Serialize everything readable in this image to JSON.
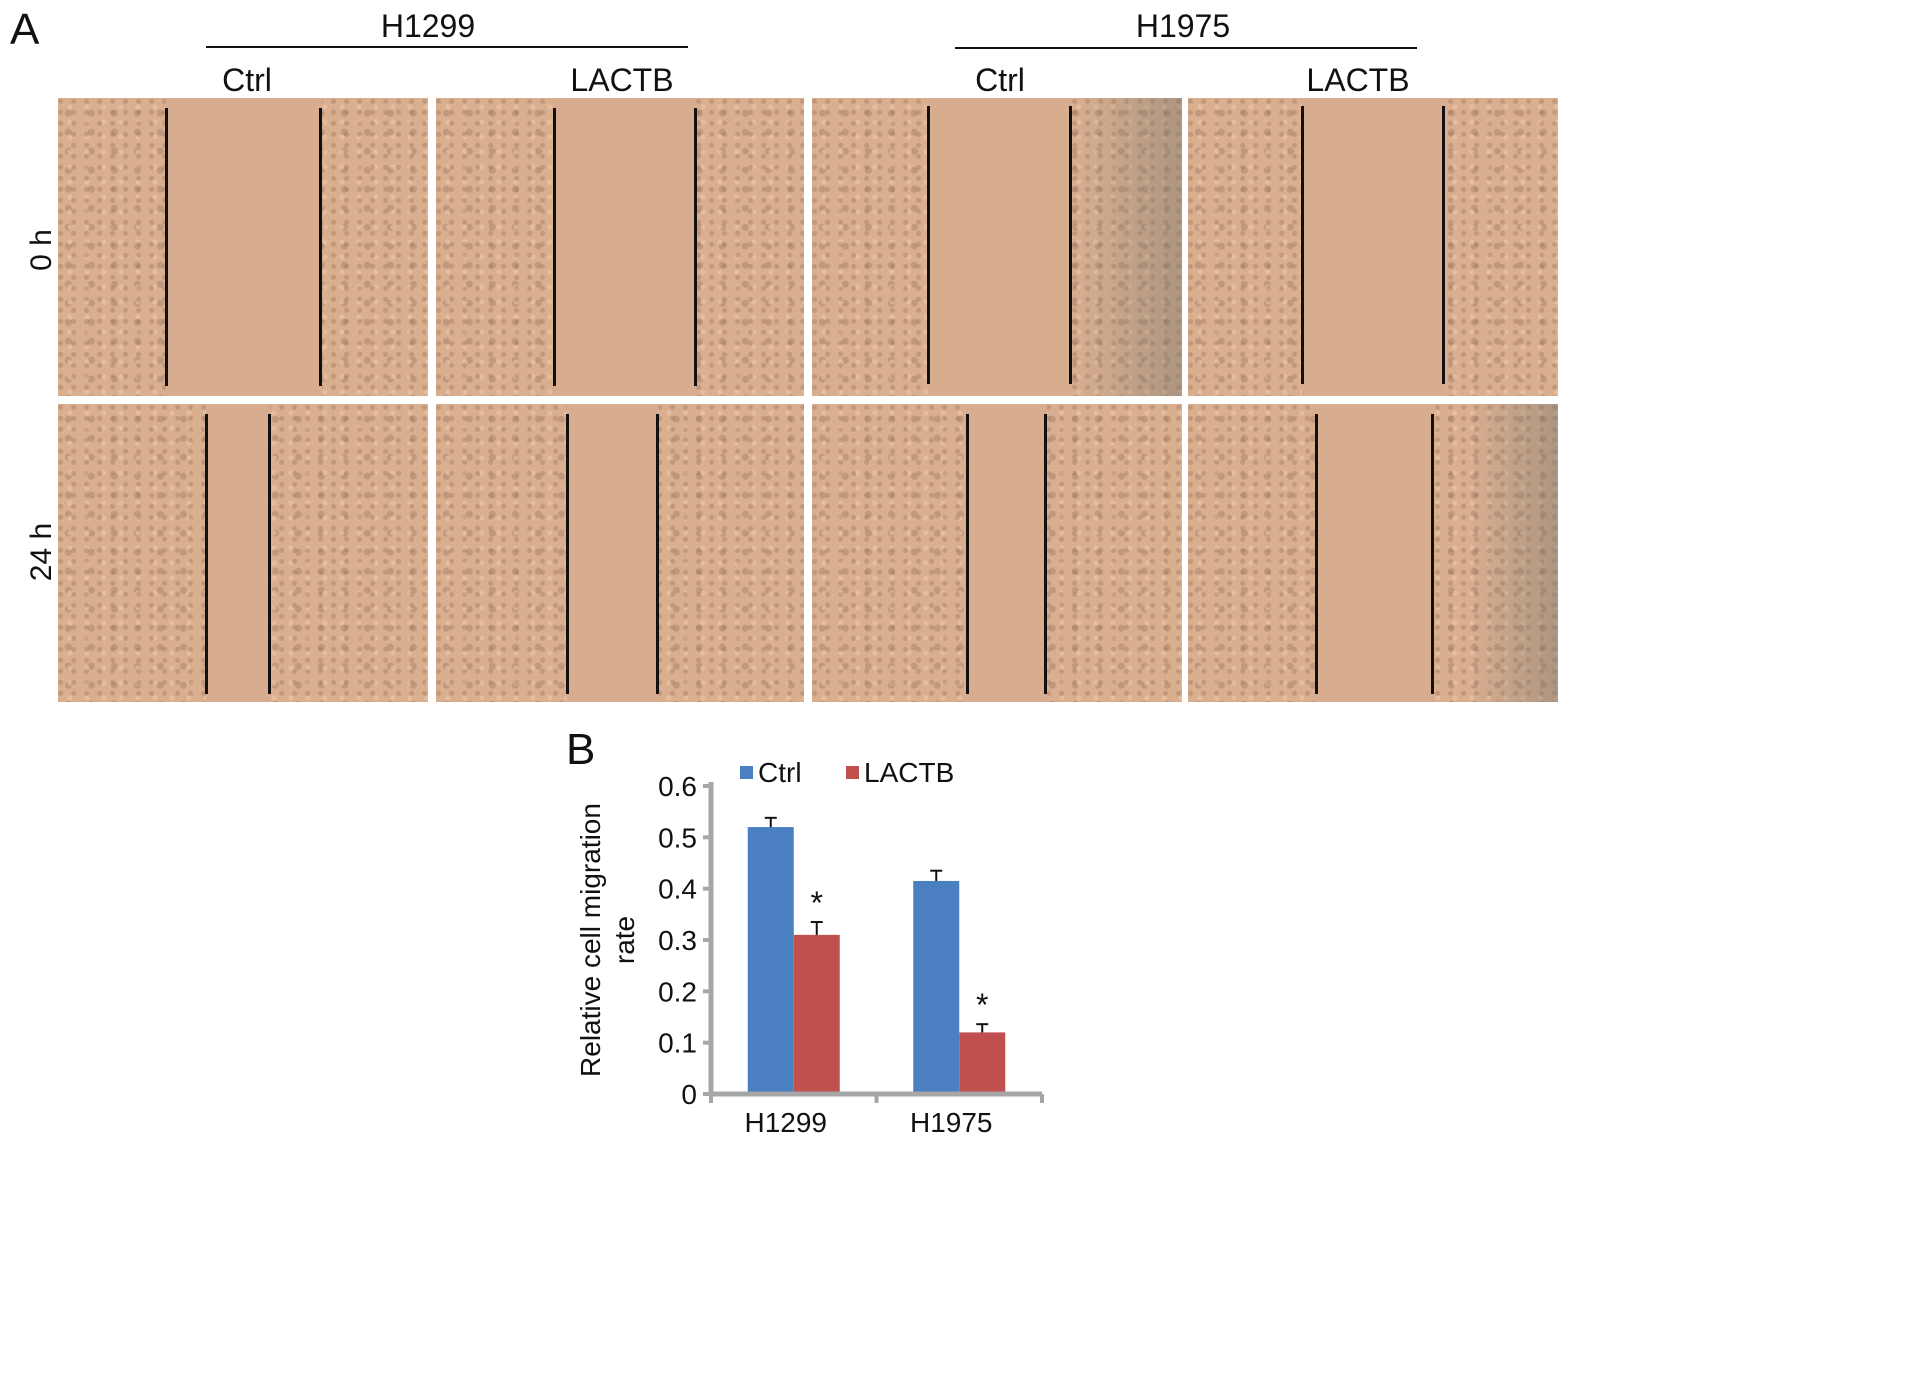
{
  "panel_a": {
    "letter": "A",
    "groups": [
      {
        "name": "H1299",
        "conditions": [
          "Ctrl",
          "LACTB"
        ]
      },
      {
        "name": "H1975",
        "conditions": [
          "Ctrl",
          "LACTB"
        ]
      }
    ],
    "rows": [
      "0 h",
      "24 h"
    ]
  },
  "panel_b": {
    "letter": "B"
  },
  "colors": {
    "ctrl": "#4a7fc1",
    "lactb": "#c0504d",
    "axis": "#a6a6a6"
  },
  "chart_data": {
    "type": "bar",
    "categories": [
      "H1299",
      "H1975"
    ],
    "series": [
      {
        "name": "Ctrl",
        "values": [
          0.52,
          0.415
        ],
        "errors": [
          0.018,
          0.02
        ]
      },
      {
        "name": "LACTB",
        "values": [
          0.31,
          0.12
        ],
        "errors": [
          0.025,
          0.016
        ]
      }
    ],
    "significance": [
      "*",
      "*"
    ],
    "ylabel_lines": [
      "Relative cell migration",
      "rate"
    ],
    "xlabel": "",
    "ylim": [
      0,
      0.6
    ],
    "yticks": [
      "0",
      "0.1",
      "0.2",
      "0.3",
      "0.4",
      "0.5",
      "0.6"
    ],
    "legend_position": "top",
    "grid": false
  }
}
